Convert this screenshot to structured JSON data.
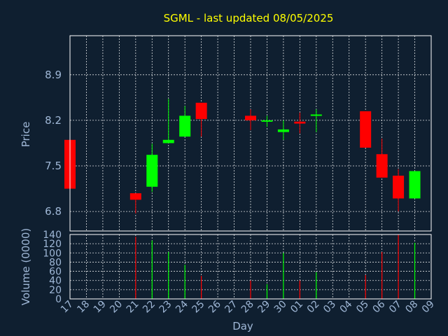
{
  "colors": {
    "background": "#0f1f30",
    "up": "#00ff00",
    "down": "#ff0000",
    "grid": "#ffffff",
    "text": "#9fb7d6",
    "title": "#ffff00"
  },
  "chart_data": {
    "type": "candlestick",
    "title": "SGML - last updated 08/05/2025",
    "price_axis": {
      "label": "Price",
      "ylim": [
        6.5,
        9.5
      ],
      "ticks": [
        6.8,
        7.5,
        8.2,
        8.9
      ]
    },
    "volume_axis": {
      "label": "Volume (0000)",
      "ylim": [
        0,
        140
      ],
      "ticks": [
        0,
        20,
        40,
        60,
        80,
        100,
        120,
        140
      ]
    },
    "x_axis": {
      "label": "Day",
      "ticks": [
        "17",
        "18",
        "19",
        "20",
        "21",
        "22",
        "23",
        "24",
        "25",
        "26",
        "27",
        "28",
        "29",
        "30",
        "01",
        "02",
        "03",
        "04",
        "05",
        "06",
        "07",
        "08",
        "09"
      ]
    },
    "grid": true,
    "candles": [
      {
        "day": "17",
        "open": 7.9,
        "high": 7.9,
        "low": 7.15,
        "close": 7.15,
        "volume": 0
      },
      {
        "day": "21",
        "open": 7.08,
        "high": 7.08,
        "low": 6.77,
        "close": 6.98,
        "volume": 135
      },
      {
        "day": "22",
        "open": 7.18,
        "high": 7.84,
        "low": 7.1,
        "close": 7.67,
        "volume": 127
      },
      {
        "day": "23",
        "open": 7.85,
        "high": 8.53,
        "low": 7.85,
        "close": 7.9,
        "volume": 102
      },
      {
        "day": "24",
        "open": 7.95,
        "high": 8.42,
        "low": 7.95,
        "close": 8.27,
        "volume": 74
      },
      {
        "day": "25",
        "open": 8.47,
        "high": 8.47,
        "low": 7.95,
        "close": 8.22,
        "volume": 50
      },
      {
        "day": "28",
        "open": 8.27,
        "high": 8.37,
        "low": 8.05,
        "close": 8.2,
        "volume": 40
      },
      {
        "day": "29",
        "open": 8.2,
        "high": 8.27,
        "low": 8.1,
        "close": 8.2,
        "volume": 32
      },
      {
        "day": "30",
        "open": 8.02,
        "high": 8.2,
        "low": 7.9,
        "close": 8.06,
        "volume": 100
      },
      {
        "day": "01",
        "open": 8.18,
        "high": 8.32,
        "low": 8.0,
        "close": 8.15,
        "volume": 40
      },
      {
        "day": "02",
        "open": 8.27,
        "high": 8.37,
        "low": 8.02,
        "close": 8.29,
        "volume": 58
      },
      {
        "day": "05",
        "open": 8.34,
        "high": 8.34,
        "low": 7.78,
        "close": 7.78,
        "volume": 52
      },
      {
        "day": "06",
        "open": 7.68,
        "high": 7.92,
        "low": 7.32,
        "close": 7.32,
        "volume": 102
      },
      {
        "day": "07",
        "open": 7.35,
        "high": 7.45,
        "low": 6.8,
        "close": 7.0,
        "volume": 140
      },
      {
        "day": "08",
        "open": 7.0,
        "high": 7.42,
        "low": 7.0,
        "close": 7.42,
        "volume": 122
      }
    ]
  }
}
